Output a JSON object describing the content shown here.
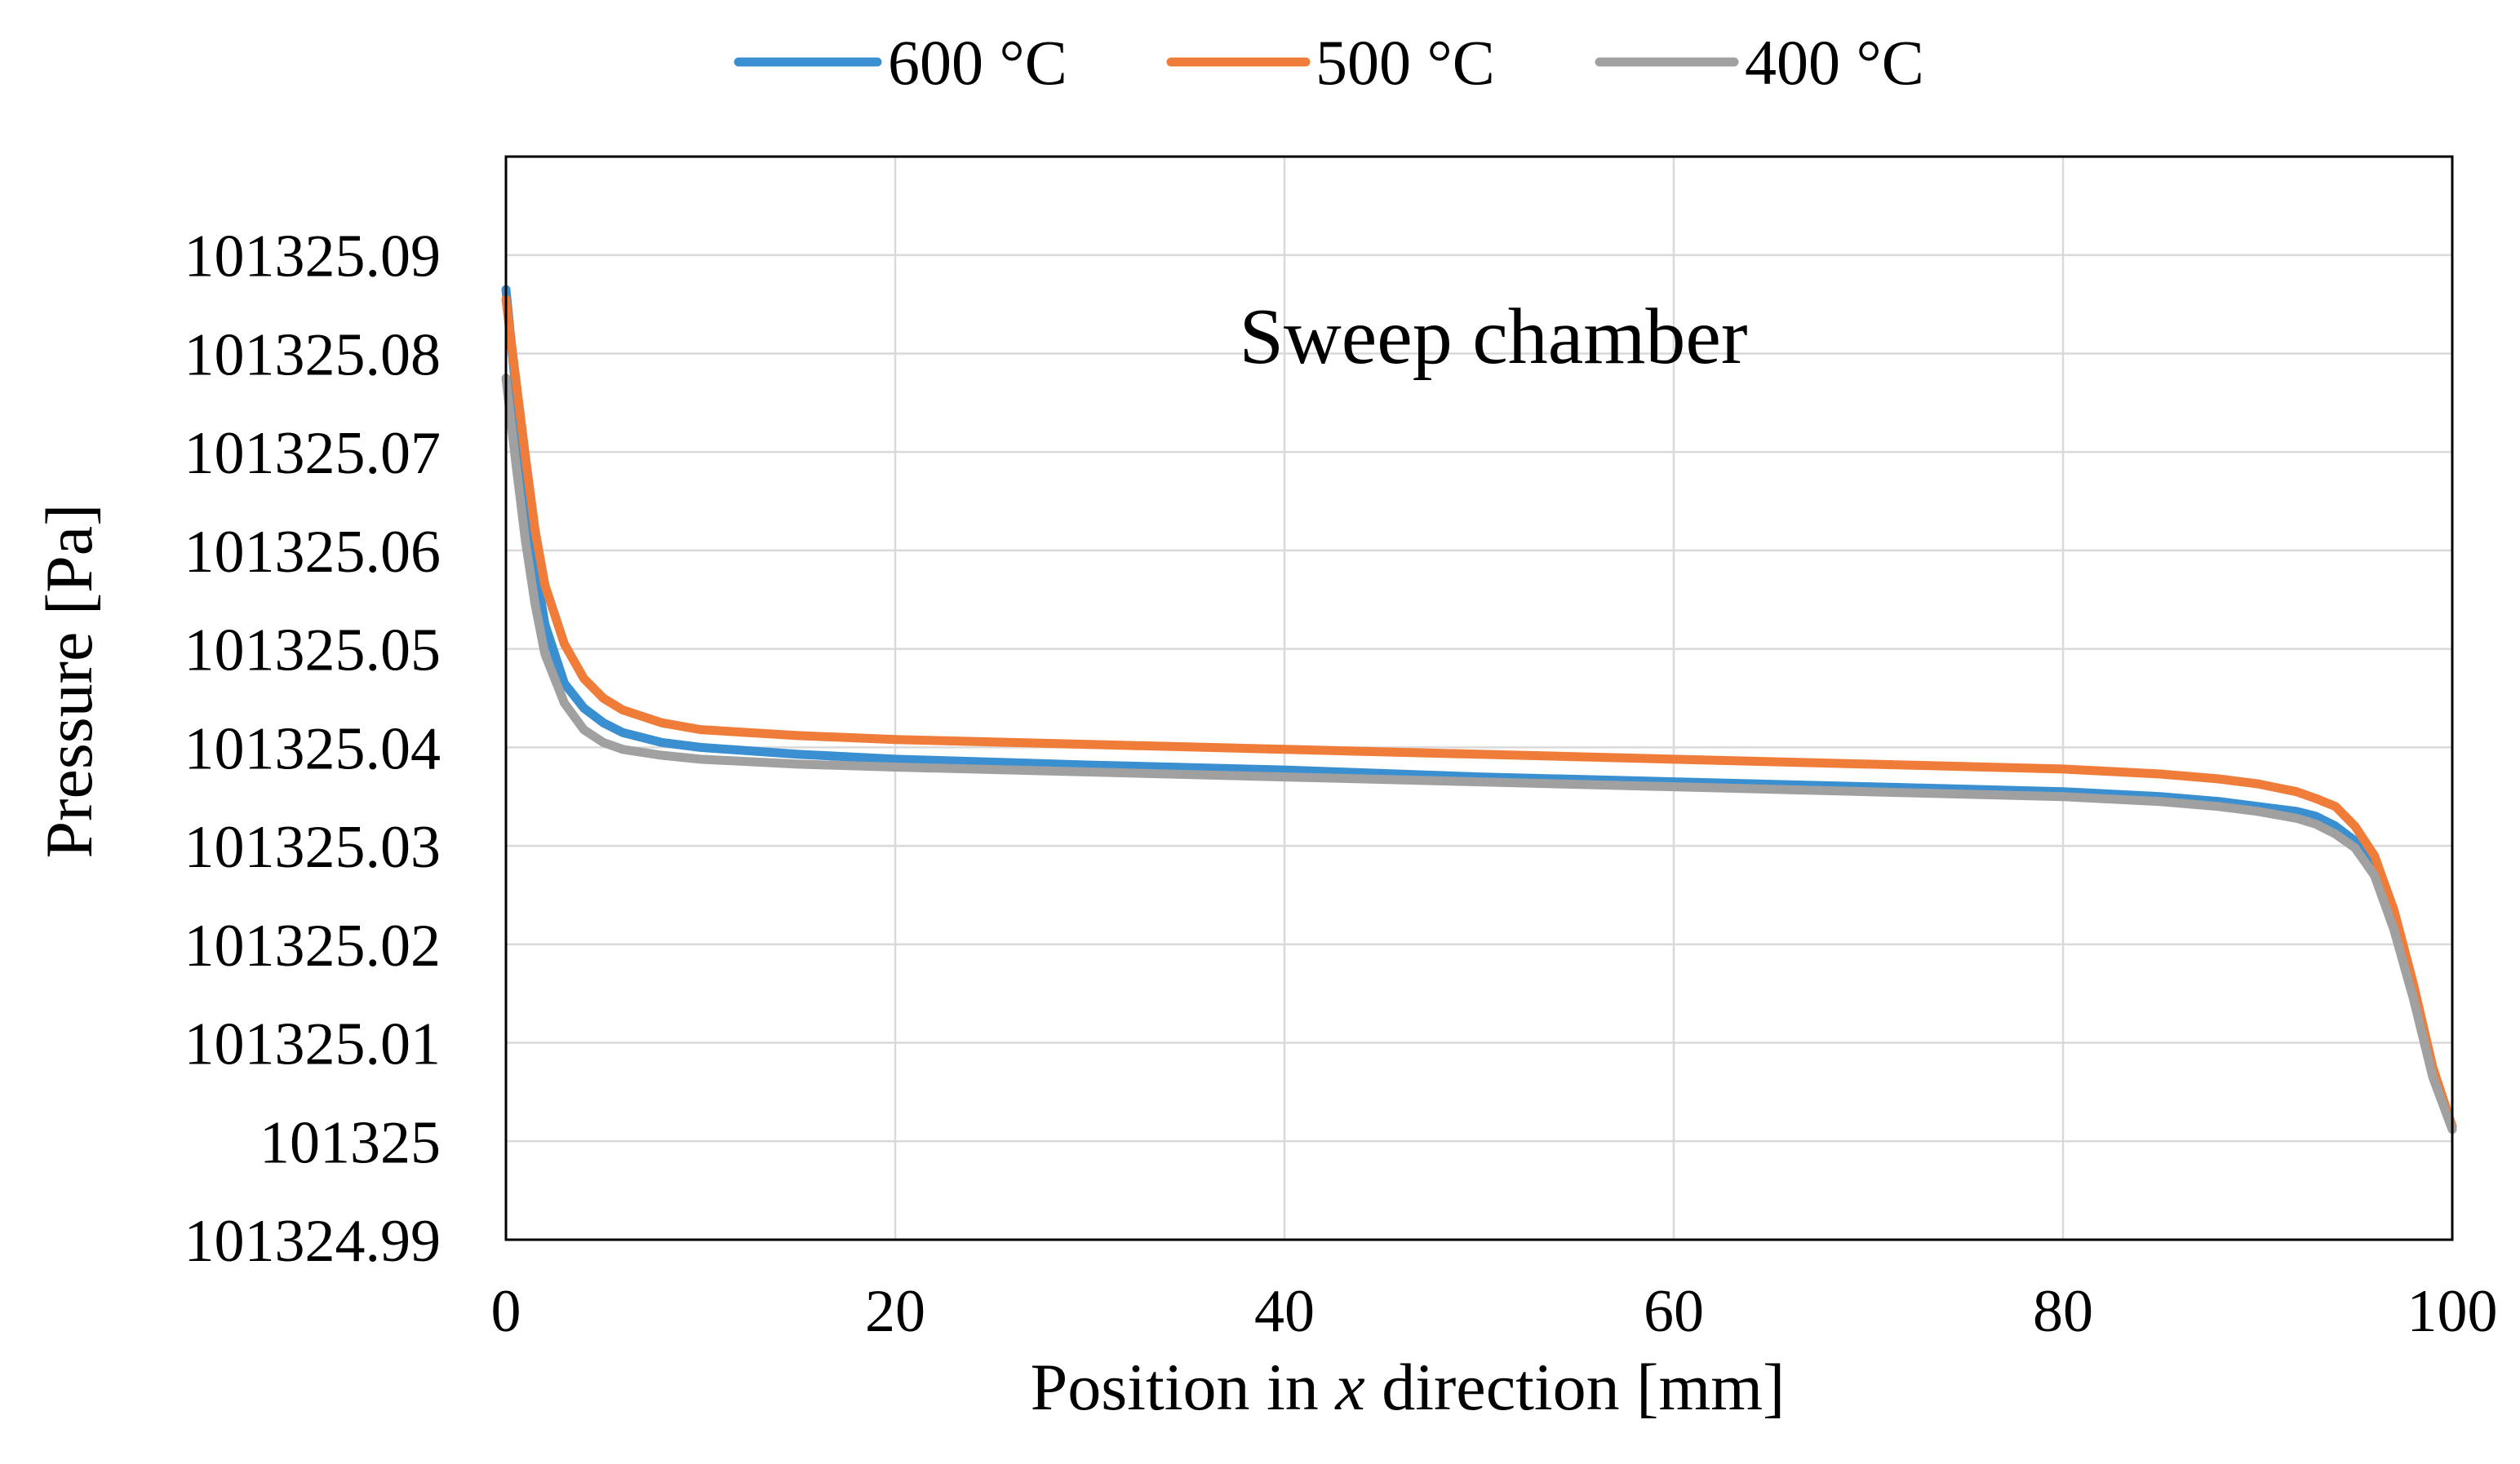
{
  "chart_data": {
    "type": "line",
    "title": "",
    "annotation": "Sweep chamber",
    "xlabel": "Position in x direction [mm]",
    "xlabel_parts": [
      "Position in ",
      "x",
      " direction [mm]"
    ],
    "ylabel": "Pressure [Pa]",
    "xlim": [
      0,
      100
    ],
    "ylim": [
      101324.99,
      101325.1
    ],
    "grid": true,
    "legend_position": "top",
    "x_ticks": [
      {
        "value": 0,
        "label": "0"
      },
      {
        "value": 20,
        "label": "20"
      },
      {
        "value": 40,
        "label": "40"
      },
      {
        "value": 60,
        "label": "60"
      },
      {
        "value": 80,
        "label": "80"
      },
      {
        "value": 100,
        "label": "100"
      }
    ],
    "y_ticks": [
      {
        "value": 101324.99,
        "label": "101324.99"
      },
      {
        "value": 101325.0,
        "label": "101325"
      },
      {
        "value": 101325.01,
        "label": "101325.01"
      },
      {
        "value": 101325.02,
        "label": "101325.02"
      },
      {
        "value": 101325.03,
        "label": "101325.03"
      },
      {
        "value": 101325.04,
        "label": "101325.04"
      },
      {
        "value": 101325.05,
        "label": "101325.05"
      },
      {
        "value": 101325.06,
        "label": "101325.06"
      },
      {
        "value": 101325.07,
        "label": "101325.07"
      },
      {
        "value": 101325.08,
        "label": "101325.08"
      },
      {
        "value": 101325.09,
        "label": "101325.09"
      }
    ],
    "series": [
      {
        "name": "600 °C",
        "color": "#3a8fd1",
        "x": [
          0,
          0.5,
          1,
          1.5,
          2,
          3,
          4,
          5,
          6,
          8,
          10,
          15,
          20,
          30,
          40,
          50,
          60,
          70,
          80,
          85,
          88,
          90,
          92,
          93,
          94,
          95,
          96,
          97,
          98,
          99,
          100
        ],
        "y": [
          101325.0865,
          101325.0765,
          101325.0665,
          101325.0585,
          101325.0525,
          101325.0465,
          101325.044,
          101325.0425,
          101325.0415,
          101325.0405,
          101325.04,
          101325.0393,
          101325.0388,
          101325.0382,
          101325.0377,
          101325.037,
          101325.0365,
          101325.036,
          101325.0355,
          101325.035,
          101325.0345,
          101325.034,
          101325.0335,
          101325.033,
          101325.032,
          101325.0305,
          101325.0275,
          101325.022,
          101325.015,
          101325.007,
          101325.0015
        ]
      },
      {
        "name": "500 °C",
        "color": "#f07c3a",
        "x": [
          0,
          0.5,
          1,
          1.5,
          2,
          3,
          4,
          5,
          6,
          8,
          10,
          15,
          20,
          30,
          40,
          50,
          60,
          70,
          80,
          85,
          88,
          90,
          92,
          93,
          94,
          95,
          96,
          97,
          98,
          99,
          100
        ],
        "y": [
          101325.0855,
          101325.0775,
          101325.0695,
          101325.062,
          101325.0565,
          101325.0505,
          101325.047,
          101325.045,
          101325.0438,
          101325.0425,
          101325.0418,
          101325.0412,
          101325.0408,
          101325.0403,
          101325.0398,
          101325.0393,
          101325.0388,
          101325.0383,
          101325.0378,
          101325.0373,
          101325.0368,
          101325.0363,
          101325.0355,
          101325.0348,
          101325.034,
          101325.032,
          101325.029,
          101325.0235,
          101325.016,
          101325.0075,
          101325.0015
        ]
      },
      {
        "name": "400 °C",
        "color": "#a0a0a0",
        "x": [
          0,
          0.5,
          1,
          1.5,
          2,
          3,
          4,
          5,
          6,
          8,
          10,
          15,
          20,
          30,
          40,
          50,
          60,
          70,
          80,
          85,
          88,
          90,
          92,
          93,
          94,
          95,
          96,
          97,
          98,
          99,
          100
        ],
        "y": [
          101325.0775,
          101325.069,
          101325.061,
          101325.0545,
          101325.0495,
          101325.0445,
          101325.0418,
          101325.0405,
          101325.0398,
          101325.0392,
          101325.0388,
          101325.0383,
          101325.038,
          101325.0375,
          101325.037,
          101325.0365,
          101325.036,
          101325.0355,
          101325.035,
          101325.0345,
          101325.034,
          101325.0335,
          101325.0328,
          101325.0322,
          101325.0312,
          101325.0298,
          101325.027,
          101325.0215,
          101325.0145,
          101325.0065,
          101325.0012
        ]
      }
    ]
  }
}
